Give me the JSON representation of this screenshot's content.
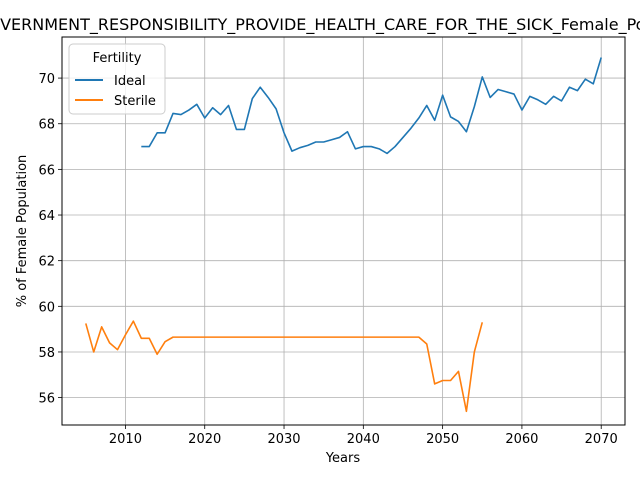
{
  "chart_data": {
    "type": "line",
    "title": "GOVERNMENT_RESPONSIBILITY_PROVIDE_HEALTH_CARE_FOR_THE_SICK_Female_Population",
    "xlabel": "Years",
    "ylabel": "% of Female Population",
    "xlim": [
      2002,
      2073
    ],
    "ylim": [
      54.8,
      71.8
    ],
    "xticks": [
      2010,
      2020,
      2030,
      2040,
      2050,
      2060,
      2070
    ],
    "yticks": [
      56,
      58,
      60,
      62,
      64,
      66,
      68,
      70
    ],
    "grid": true,
    "legend": {
      "title": "Fertility",
      "placement": "upper-left"
    },
    "colors": {
      "Ideal": "#1f77b4",
      "Sterile": "#ff7f0e"
    },
    "series": [
      {
        "name": "Ideal",
        "x": [
          2012,
          2013,
          2014,
          2015,
          2016,
          2017,
          2018,
          2019,
          2020,
          2021,
          2022,
          2023,
          2024,
          2025,
          2026,
          2027,
          2028,
          2029,
          2030,
          2031,
          2032,
          2033,
          2034,
          2035,
          2036,
          2037,
          2038,
          2039,
          2040,
          2041,
          2042,
          2043,
          2044,
          2045,
          2046,
          2047,
          2048,
          2049,
          2050,
          2051,
          2052,
          2053,
          2054,
          2055,
          2056,
          2057,
          2058,
          2059,
          2060,
          2061,
          2062,
          2063,
          2064,
          2065,
          2066,
          2067,
          2068,
          2069,
          2070
        ],
        "values": [
          67.0,
          67.0,
          67.6,
          67.6,
          68.45,
          68.4,
          68.6,
          68.85,
          68.25,
          68.7,
          68.4,
          68.8,
          67.75,
          67.75,
          69.1,
          69.6,
          69.15,
          68.65,
          67.6,
          66.8,
          66.95,
          67.05,
          67.2,
          67.2,
          67.3,
          67.4,
          67.65,
          66.9,
          67.0,
          67.0,
          66.9,
          66.7,
          67.0,
          67.4,
          67.8,
          68.25,
          68.8,
          68.15,
          69.25,
          68.3,
          68.1,
          67.65,
          68.75,
          70.05,
          69.15,
          69.5,
          69.4,
          69.3,
          68.6,
          69.2,
          69.05,
          68.85,
          69.2,
          69.0,
          69.6,
          69.45,
          69.95,
          69.75,
          70.9
        ]
      },
      {
        "name": "Sterile",
        "x": [
          2005,
          2006,
          2007,
          2008,
          2009,
          2010,
          2011,
          2012,
          2013,
          2014,
          2015,
          2016,
          2017,
          2018,
          2019,
          2020,
          2021,
          2022,
          2023,
          2024,
          2025,
          2026,
          2027,
          2028,
          2029,
          2030,
          2031,
          2032,
          2033,
          2034,
          2035,
          2036,
          2037,
          2038,
          2039,
          2040,
          2041,
          2042,
          2043,
          2044,
          2045,
          2046,
          2047,
          2048,
          2049,
          2050,
          2051,
          2052,
          2053,
          2054,
          2055
        ],
        "values": [
          59.25,
          58.0,
          59.1,
          58.4,
          58.1,
          58.75,
          59.35,
          58.6,
          58.6,
          57.9,
          58.45,
          58.65,
          58.65,
          58.65,
          58.65,
          58.65,
          58.65,
          58.65,
          58.65,
          58.65,
          58.65,
          58.65,
          58.65,
          58.65,
          58.65,
          58.65,
          58.65,
          58.65,
          58.65,
          58.65,
          58.65,
          58.65,
          58.65,
          58.65,
          58.65,
          58.65,
          58.65,
          58.65,
          58.65,
          58.65,
          58.65,
          58.65,
          58.65,
          58.35,
          56.6,
          56.75,
          56.75,
          57.15,
          55.4,
          58.0,
          59.3
        ]
      }
    ]
  }
}
